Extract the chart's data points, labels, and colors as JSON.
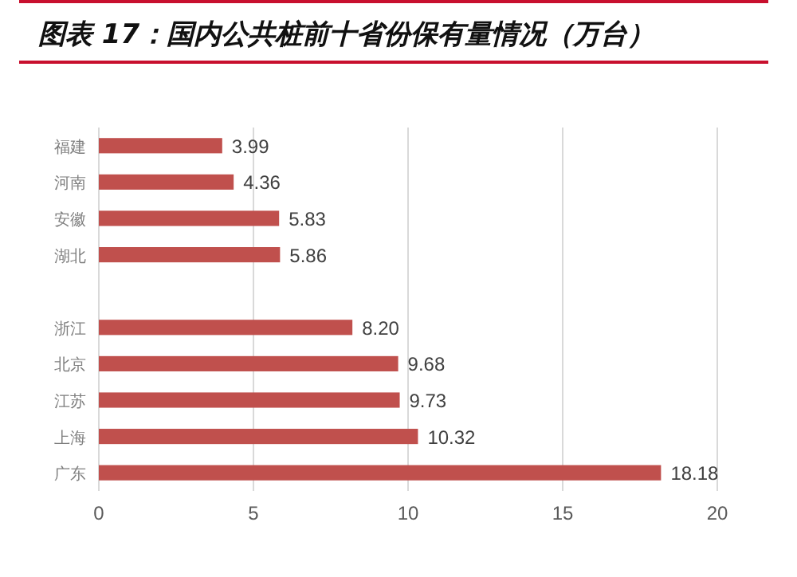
{
  "chart_data": {
    "type": "bar",
    "orientation": "horizontal",
    "title": "图表 17：国内公共桩前十省份保有量情况（万台）",
    "categories": [
      "福建",
      "河南",
      "安徽",
      "湖北",
      null,
      "浙江",
      "北京",
      "江苏",
      "上海",
      "广东"
    ],
    "values": [
      3.99,
      4.36,
      5.83,
      5.86,
      null,
      8.2,
      9.68,
      9.73,
      10.32,
      18.18
    ],
    "value_labels": [
      "3.99",
      "4.36",
      "5.83",
      "5.86",
      null,
      "8.20",
      "9.68",
      "9.73",
      "10.32",
      "18.18"
    ],
    "color": "#c0504d",
    "xlim": [
      0,
      20
    ],
    "xticks": [
      0,
      5,
      10,
      15,
      20
    ],
    "grid": "x"
  }
}
